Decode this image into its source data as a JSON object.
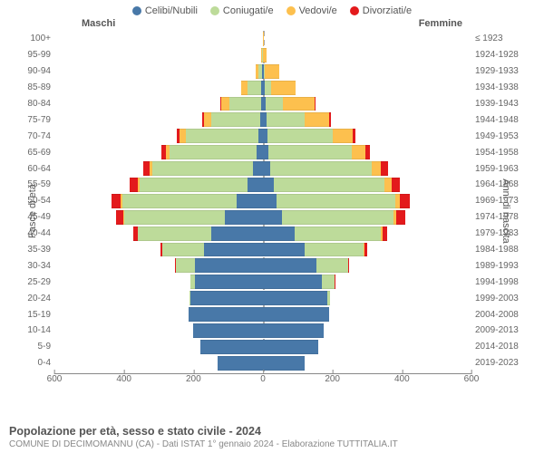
{
  "legend": [
    {
      "label": "Celibi/Nubili",
      "color": "#4878a8"
    },
    {
      "label": "Coniugati/e",
      "color": "#bddb9a"
    },
    {
      "label": "Vedovi/e",
      "color": "#fdc04e"
    },
    {
      "label": "Divorziati/e",
      "color": "#e31a1c"
    }
  ],
  "header_left": "Maschi",
  "header_right": "Femmine",
  "y_left_title": "Fasce di età",
  "y_right_title": "Anni di nascita",
  "x_max": 600,
  "x_ticks": [
    600,
    400,
    200,
    0,
    200,
    400,
    600
  ],
  "chart": {
    "type": "population-pyramid",
    "background_color": "#ffffff",
    "grid_color": "#aaaaaa",
    "label_fontsize": 10,
    "title_fontsize": 12.5,
    "categories": [
      "single",
      "married",
      "widowed",
      "divorced"
    ],
    "colors": {
      "single": "#4878a8",
      "married": "#bddb9a",
      "widowed": "#fdc04e",
      "divorced": "#e31a1c"
    },
    "bar_gap": 2
  },
  "rows": [
    {
      "age": "100+",
      "birth": "≤ 1923",
      "m": {
        "s": 0,
        "c": 0,
        "w": 1,
        "d": 0
      },
      "f": {
        "s": 0,
        "c": 0,
        "w": 1,
        "d": 0
      }
    },
    {
      "age": "95-99",
      "birth": "1924-1928",
      "m": {
        "s": 0,
        "c": 2,
        "w": 2,
        "d": 0
      },
      "f": {
        "s": 0,
        "c": 0,
        "w": 10,
        "d": 0
      }
    },
    {
      "age": "90-94",
      "birth": "1929-1933",
      "m": {
        "s": 2,
        "c": 10,
        "w": 8,
        "d": 0
      },
      "f": {
        "s": 2,
        "c": 4,
        "w": 40,
        "d": 0
      }
    },
    {
      "age": "85-89",
      "birth": "1934-1938",
      "m": {
        "s": 4,
        "c": 40,
        "w": 18,
        "d": 0
      },
      "f": {
        "s": 6,
        "c": 18,
        "w": 70,
        "d": 0
      }
    },
    {
      "age": "80-84",
      "birth": "1939-1943",
      "m": {
        "s": 6,
        "c": 90,
        "w": 25,
        "d": 2
      },
      "f": {
        "s": 8,
        "c": 50,
        "w": 90,
        "d": 4
      }
    },
    {
      "age": "75-79",
      "birth": "1944-1948",
      "m": {
        "s": 8,
        "c": 140,
        "w": 22,
        "d": 4
      },
      "f": {
        "s": 10,
        "c": 110,
        "w": 70,
        "d": 6
      }
    },
    {
      "age": "70-74",
      "birth": "1949-1953",
      "m": {
        "s": 12,
        "c": 210,
        "w": 18,
        "d": 8
      },
      "f": {
        "s": 12,
        "c": 190,
        "w": 55,
        "d": 10
      }
    },
    {
      "age": "65-69",
      "birth": "1954-1958",
      "m": {
        "s": 18,
        "c": 250,
        "w": 12,
        "d": 12
      },
      "f": {
        "s": 16,
        "c": 240,
        "w": 38,
        "d": 14
      }
    },
    {
      "age": "60-64",
      "birth": "1959-1963",
      "m": {
        "s": 28,
        "c": 290,
        "w": 8,
        "d": 18
      },
      "f": {
        "s": 22,
        "c": 290,
        "w": 28,
        "d": 20
      }
    },
    {
      "age": "55-59",
      "birth": "1964-1968",
      "m": {
        "s": 45,
        "c": 310,
        "w": 6,
        "d": 22
      },
      "f": {
        "s": 30,
        "c": 320,
        "w": 20,
        "d": 24
      }
    },
    {
      "age": "50-54",
      "birth": "1969-1973",
      "m": {
        "s": 75,
        "c": 330,
        "w": 4,
        "d": 26
      },
      "f": {
        "s": 40,
        "c": 340,
        "w": 14,
        "d": 28
      }
    },
    {
      "age": "45-49",
      "birth": "1974-1978",
      "m": {
        "s": 110,
        "c": 290,
        "w": 2,
        "d": 20
      },
      "f": {
        "s": 55,
        "c": 320,
        "w": 8,
        "d": 26
      }
    },
    {
      "age": "40-44",
      "birth": "1979-1983",
      "m": {
        "s": 150,
        "c": 210,
        "w": 0,
        "d": 12
      },
      "f": {
        "s": 90,
        "c": 250,
        "w": 4,
        "d": 14
      }
    },
    {
      "age": "35-39",
      "birth": "1984-1988",
      "m": {
        "s": 170,
        "c": 120,
        "w": 0,
        "d": 6
      },
      "f": {
        "s": 120,
        "c": 170,
        "w": 2,
        "d": 8
      }
    },
    {
      "age": "30-34",
      "birth": "1989-1993",
      "m": {
        "s": 195,
        "c": 55,
        "w": 0,
        "d": 2
      },
      "f": {
        "s": 155,
        "c": 90,
        "w": 0,
        "d": 4
      }
    },
    {
      "age": "25-29",
      "birth": "1994-1998",
      "m": {
        "s": 195,
        "c": 15,
        "w": 0,
        "d": 0
      },
      "f": {
        "s": 170,
        "c": 35,
        "w": 0,
        "d": 2
      }
    },
    {
      "age": "20-24",
      "birth": "1999-2003",
      "m": {
        "s": 210,
        "c": 2,
        "w": 0,
        "d": 0
      },
      "f": {
        "s": 185,
        "c": 8,
        "w": 0,
        "d": 0
      }
    },
    {
      "age": "15-19",
      "birth": "2004-2008",
      "m": {
        "s": 215,
        "c": 0,
        "w": 0,
        "d": 0
      },
      "f": {
        "s": 190,
        "c": 0,
        "w": 0,
        "d": 0
      }
    },
    {
      "age": "10-14",
      "birth": "2009-2013",
      "m": {
        "s": 200,
        "c": 0,
        "w": 0,
        "d": 0
      },
      "f": {
        "s": 175,
        "c": 0,
        "w": 0,
        "d": 0
      }
    },
    {
      "age": "5-9",
      "birth": "2014-2018",
      "m": {
        "s": 180,
        "c": 0,
        "w": 0,
        "d": 0
      },
      "f": {
        "s": 160,
        "c": 0,
        "w": 0,
        "d": 0
      }
    },
    {
      "age": "0-4",
      "birth": "2019-2023",
      "m": {
        "s": 130,
        "c": 0,
        "w": 0,
        "d": 0
      },
      "f": {
        "s": 120,
        "c": 0,
        "w": 0,
        "d": 0
      }
    }
  ],
  "footer_title": "Popolazione per età, sesso e stato civile - 2024",
  "footer_sub": "COMUNE DI DECIMOMANNU (CA) - Dati ISTAT 1° gennaio 2024 - Elaborazione TUTTITALIA.IT"
}
